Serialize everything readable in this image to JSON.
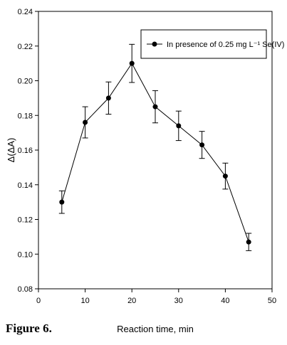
{
  "chart_data": {
    "type": "line",
    "xlabel": "Reaction time, min",
    "ylabel": "Δ(ΔA)",
    "xlim": [
      0,
      50
    ],
    "ylim": [
      0.08,
      0.24
    ],
    "x_ticks": [
      0,
      10,
      20,
      30,
      40,
      50
    ],
    "y_ticks": [
      0.08,
      0.1,
      0.12,
      0.14,
      0.16,
      0.18,
      0.2,
      0.22,
      0.24
    ],
    "legend_position": "top-right",
    "grid": false,
    "series": [
      {
        "name": "In presence of 0.25 mg L⁻¹ Se(IV)",
        "x": [
          5,
          10,
          15,
          20,
          25,
          30,
          35,
          40,
          45
        ],
        "y": [
          0.13,
          0.176,
          0.19,
          0.21,
          0.185,
          0.174,
          0.163,
          0.145,
          0.107
        ],
        "error": [
          0.0065,
          0.009,
          0.0093,
          0.011,
          0.0093,
          0.0085,
          0.0078,
          0.0075,
          0.005
        ]
      }
    ]
  },
  "caption": {
    "label": "Figure 6",
    "punct": "."
  }
}
